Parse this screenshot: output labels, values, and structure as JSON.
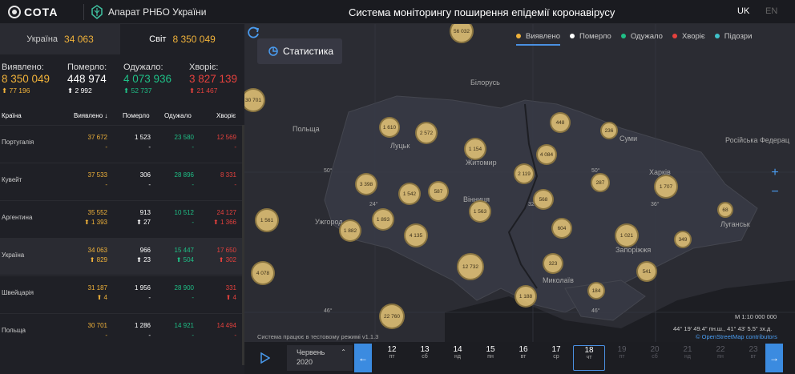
{
  "header": {
    "logo_text": "СОТА",
    "org": "Апарат РНБО України",
    "title": "Система моніторингу поширення епідемії коронавірусу",
    "lang_active": "UK",
    "lang_other": "EN"
  },
  "totals": {
    "ua_label": "Україна",
    "ua_value": "34 063",
    "world_label": "Світ",
    "world_value": "8 350 049"
  },
  "summary": {
    "confirmed": {
      "label": "Виявлено:",
      "value": "8 350 049",
      "delta": "77 196"
    },
    "deaths": {
      "label": "Померло:",
      "value": "448 974",
      "delta": "2 992"
    },
    "recovered": {
      "label": "Одужало:",
      "value": "4 073 936",
      "delta": "52 737"
    },
    "sick": {
      "label": "Хворіє:",
      "value": "3 827 139",
      "delta": "21 467"
    }
  },
  "table": {
    "headers": {
      "country": "Країна",
      "confirmed": "Виявлено ↓",
      "deaths": "Померло",
      "recovered": "Одужало",
      "sick": "Хворіє"
    },
    "rows": [
      {
        "country": "Португалія",
        "confirmed": "37 672",
        "deaths": "1 523",
        "recovered": "23 580",
        "sick": "12 569",
        "d_conf": "-",
        "d_death": "-",
        "d_rec": "-",
        "d_sick": "-"
      },
      {
        "country": "Кувейт",
        "confirmed": "37 533",
        "deaths": "306",
        "recovered": "28 896",
        "sick": "8 331",
        "d_conf": "-",
        "d_death": "-",
        "d_rec": "-",
        "d_sick": "-"
      },
      {
        "country": "Аргентина",
        "confirmed": "35 552",
        "deaths": "913",
        "recovered": "10 512",
        "sick": "24 127",
        "d_conf": "⬆ 1 393",
        "d_death": "⬆ 27",
        "d_rec": "-",
        "d_sick": "⬆ 1 366"
      },
      {
        "country": "Україна",
        "confirmed": "34 063",
        "deaths": "966",
        "recovered": "15 447",
        "sick": "17 650",
        "d_conf": "⬆ 829",
        "d_death": "⬆ 23",
        "d_rec": "⬆ 504",
        "d_sick": "⬆ 302"
      },
      {
        "country": "Швейцарія",
        "confirmed": "31 187",
        "deaths": "1 956",
        "recovered": "28 900",
        "sick": "331",
        "d_conf": "⬆ 4",
        "d_death": "-",
        "d_rec": "-",
        "d_sick": "⬆ 4"
      },
      {
        "country": "Польща",
        "confirmed": "30 701",
        "deaths": "1 286",
        "recovered": "14 921",
        "sick": "14 494",
        "d_conf": "-",
        "d_death": "-",
        "d_rec": "-",
        "d_sick": "-"
      }
    ]
  },
  "map": {
    "stat_button": "Статистика",
    "legend": [
      {
        "label": "Виявлено",
        "color": "#f0b23a"
      },
      {
        "label": "Померло",
        "color": "#ffffff"
      },
      {
        "label": "Одужало",
        "color": "#1fbf86"
      },
      {
        "label": "Хворіє",
        "color": "#e5413d"
      },
      {
        "label": "Підозри",
        "color": "#3fc1c9"
      }
    ],
    "labels": [
      "Білорусь",
      "Польща",
      "Луцьк",
      "Житомир",
      "Суми",
      "Російська Федерац",
      "Харків",
      "Вінниця",
      "Ужгород",
      "Луганськ",
      "Запоріжжя",
      "Миколаїв"
    ],
    "grid_labels": [
      "50°",
      "50°",
      "46°",
      "46°",
      "24°",
      "32°",
      "36°"
    ],
    "bubbles": [
      "56 032",
      "30 701",
      "1 610",
      "2 572",
      "448",
      "236",
      "1 154",
      "4 084",
      "2 119",
      "3 398",
      "1 542",
      "587",
      "287",
      "1 707",
      "568",
      "1 561",
      "1 893",
      "1 563",
      "68",
      "1 882",
      "4 135",
      "604",
      "1 021",
      "349",
      "12 732",
      "323",
      "4 078",
      "541",
      "184",
      "1 188",
      "22 760"
    ],
    "scale": "М 1:10 000 000",
    "coords": "44° 19' 49.4\" пн.ш., 41° 43' 5.5\" зх.д.",
    "osm": "© OpenStreetMap contributors",
    "testmode": "Система працює в тестовому режимі v1.1.3"
  },
  "timeline": {
    "month": "Червень",
    "year": "2020",
    "days": [
      {
        "n": "12",
        "w": "пт"
      },
      {
        "n": "13",
        "w": "сб"
      },
      {
        "n": "14",
        "w": "нд"
      },
      {
        "n": "15",
        "w": "пн"
      },
      {
        "n": "16",
        "w": "вт"
      },
      {
        "n": "17",
        "w": "ср"
      },
      {
        "n": "18",
        "w": "чт"
      },
      {
        "n": "19",
        "w": "пт"
      },
      {
        "n": "20",
        "w": "сб"
      },
      {
        "n": "21",
        "w": "нд"
      },
      {
        "n": "22",
        "w": "пн"
      },
      {
        "n": "23",
        "w": "вт"
      }
    ],
    "selected_index": 6
  }
}
